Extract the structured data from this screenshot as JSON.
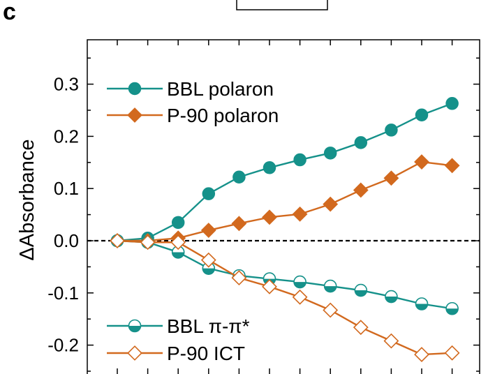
{
  "panel_label": "c",
  "chart_data": {
    "type": "line",
    "title": "",
    "xlabel": "",
    "ylabel": "ΔAbsorbance",
    "ylim": [
      -0.25,
      0.36
    ],
    "yticks": [
      "0.3",
      "0.2",
      "0.1",
      "0.0",
      "-0.1",
      "-0.2"
    ],
    "ytick_values": [
      0.3,
      0.2,
      0.1,
      0.0,
      -0.1,
      -0.2
    ],
    "x": [
      0,
      1,
      2,
      3,
      4,
      5,
      6,
      7,
      8,
      9,
      10,
      11
    ],
    "zero_line": "dashed",
    "grid": false,
    "legend_top": [
      "BBL polaron",
      "P-90 polaron"
    ],
    "legend_bottom": [
      "BBL π-π*",
      "P-90 ICT"
    ],
    "series": [
      {
        "name": "BBL polaron",
        "color": "#15918a",
        "marker": "circle",
        "filled": true,
        "values": [
          0.0,
          0.005,
          0.035,
          0.09,
          0.122,
          0.14,
          0.155,
          0.168,
          0.188,
          0.212,
          0.241,
          0.263
        ]
      },
      {
        "name": "P-90 polaron",
        "color": "#d2691e",
        "marker": "diamond",
        "filled": true,
        "values": [
          0.0,
          0.0,
          0.005,
          0.02,
          0.033,
          0.045,
          0.051,
          0.07,
          0.097,
          0.12,
          0.151,
          0.144
        ]
      },
      {
        "name": "BBL π-π*",
        "color": "#15918a",
        "marker": "circle",
        "filled": false,
        "values": [
          0.0,
          -0.003,
          -0.022,
          -0.053,
          -0.067,
          -0.073,
          -0.079,
          -0.087,
          -0.095,
          -0.107,
          -0.121,
          -0.13
        ]
      },
      {
        "name": "P-90 ICT",
        "color": "#d2691e",
        "marker": "diamond",
        "filled": false,
        "values": [
          0.0,
          -0.003,
          -0.003,
          -0.037,
          -0.071,
          -0.088,
          -0.108,
          -0.133,
          -0.166,
          -0.192,
          -0.218,
          -0.215
        ]
      }
    ]
  }
}
